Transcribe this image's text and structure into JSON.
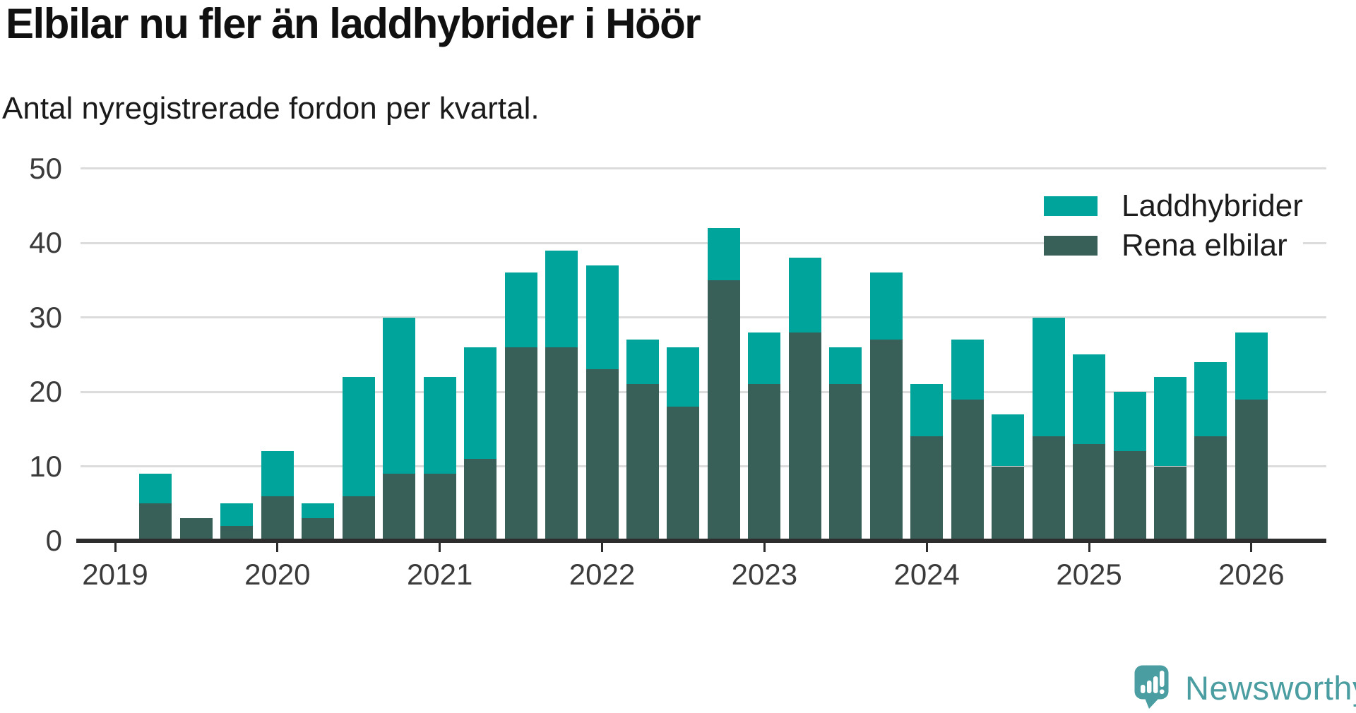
{
  "header": {
    "title": "Elbilar nu fler än laddhybrider i Höör",
    "subtitle": "Antal nyregistrerade fordon per kvartal."
  },
  "chart_data": {
    "type": "bar",
    "stacked": true,
    "x": [
      "2019 Q2",
      "2019 Q3",
      "2019 Q4",
      "2020 Q1",
      "2020 Q2",
      "2020 Q3",
      "2020 Q4",
      "2021 Q1",
      "2021 Q2",
      "2021 Q3",
      "2021 Q4",
      "2022 Q1",
      "2022 Q2",
      "2022 Q3",
      "2022 Q4",
      "2023 Q1",
      "2023 Q2",
      "2023 Q3",
      "2023 Q4",
      "2024 Q1",
      "2024 Q2",
      "2024 Q3",
      "2024 Q4",
      "2025 Q1",
      "2025 Q2",
      "2025 Q3",
      "2025 Q4",
      "2026 Q1"
    ],
    "series": [
      {
        "name": "Rena elbilar",
        "color": "#386058",
        "stack_position": "bottom",
        "values": [
          5,
          3,
          2,
          6,
          3,
          6,
          9,
          9,
          11,
          26,
          26,
          23,
          21,
          18,
          35,
          21,
          28,
          21,
          27,
          14,
          19,
          10,
          14,
          13,
          12,
          10,
          14,
          19
        ]
      },
      {
        "name": "Laddhybrider",
        "color": "#00a49b",
        "stack_position": "top",
        "values": [
          4,
          0,
          3,
          6,
          2,
          16,
          21,
          13,
          15,
          10,
          13,
          14,
          6,
          8,
          7,
          7,
          10,
          5,
          9,
          7,
          8,
          7,
          16,
          12,
          8,
          12,
          10,
          9
        ]
      }
    ],
    "totals": [
      9,
      3,
      5,
      12,
      5,
      22,
      30,
      22,
      26,
      36,
      39,
      37,
      27,
      26,
      42,
      28,
      38,
      26,
      36,
      21,
      27,
      17,
      30,
      25,
      20,
      22,
      24,
      28
    ],
    "ylim": [
      0,
      50
    ],
    "y_ticks": [
      0,
      10,
      20,
      30,
      40,
      50
    ],
    "x_tick_years": [
      "2019",
      "2020",
      "2021",
      "2022",
      "2023",
      "2024",
      "2025",
      "2026"
    ],
    "grid": "horizontal",
    "legend": {
      "position": "top-right",
      "items": [
        {
          "label": "Laddhybrider",
          "color": "#00a49b"
        },
        {
          "label": "Rena elbilar",
          "color": "#386058"
        }
      ]
    }
  },
  "branding": {
    "logo_text": "Newsworthy",
    "logo_color": "#4a9da0"
  },
  "colors": {
    "background": "#ffffff",
    "gridline": "#dcdcdc",
    "axis": "#2d2d2d",
    "tick_label": "#3b3b3b",
    "title": "#101010"
  }
}
